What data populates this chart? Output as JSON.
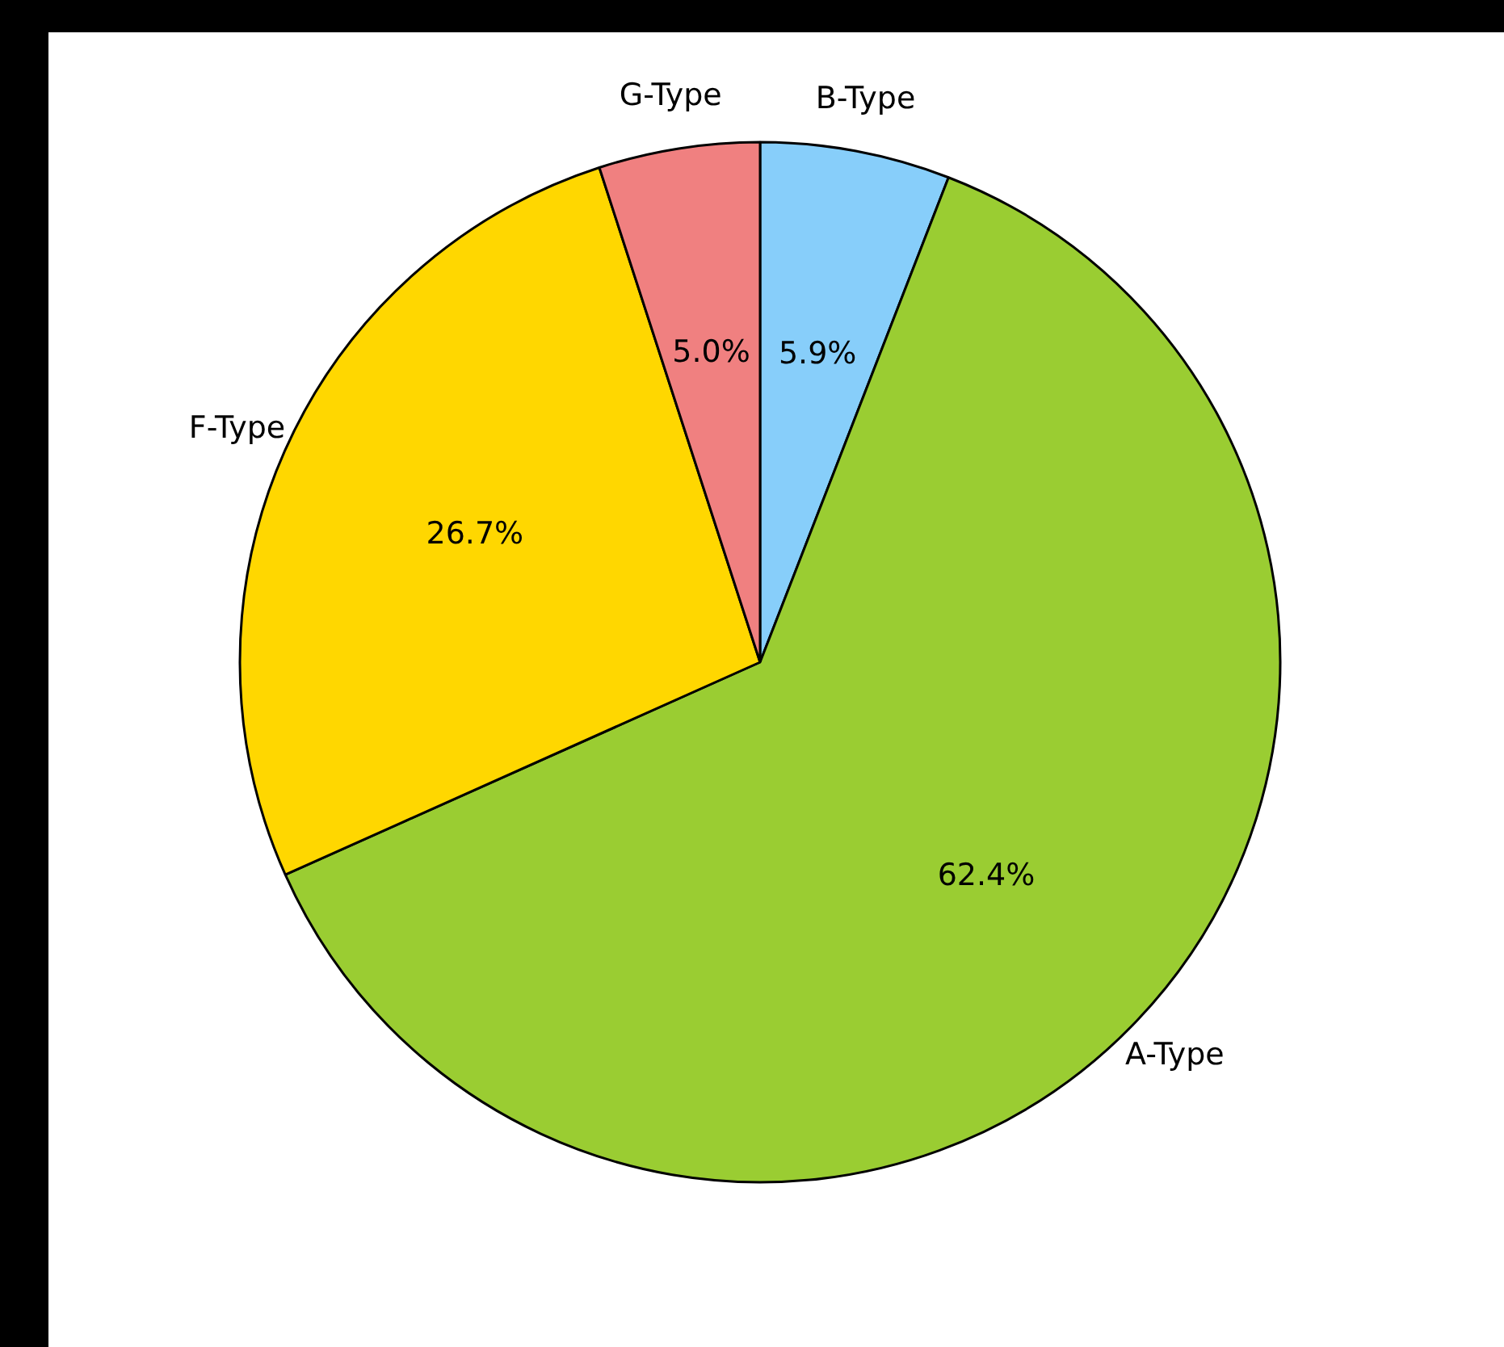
{
  "chart_data": {
    "type": "pie",
    "categories": [
      "B-Type",
      "A-Type",
      "F-Type",
      "G-Type"
    ],
    "values": [
      5.9,
      62.4,
      26.7,
      5.0
    ],
    "value_labels": [
      "5.9%",
      "62.4%",
      "26.7%",
      "5.0%"
    ],
    "colors": [
      "#87cefa",
      "#9acd32",
      "#ffd700",
      "#f08080"
    ]
  }
}
